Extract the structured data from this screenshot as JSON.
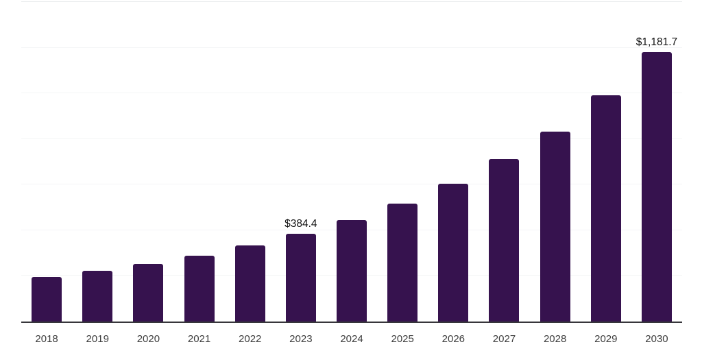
{
  "chart_data": {
    "type": "bar",
    "categories": [
      "2018",
      "2019",
      "2020",
      "2021",
      "2022",
      "2023",
      "2024",
      "2025",
      "2026",
      "2027",
      "2028",
      "2029",
      "2030"
    ],
    "values": [
      196,
      223,
      253,
      289,
      334,
      384.4,
      445,
      516,
      604,
      712,
      831,
      990,
      1181.7
    ],
    "value_labels": {
      "2023": "$384.4",
      "2030": "$1,181.7"
    },
    "title": "",
    "xlabel": "",
    "ylabel": "",
    "ylim": [
      0,
      1400
    ],
    "gridline_step": 200,
    "grid": true,
    "legend": "none",
    "y_tick_labels_visible": false,
    "colors": {
      "bar": "#36124E",
      "axis_line": "#37363B",
      "gridline": "#F4F5F6",
      "top_border": "#E7E9EA",
      "value_label": "#121212",
      "tick_label": "#3D3D3D",
      "background": "#FFFFFF"
    }
  }
}
